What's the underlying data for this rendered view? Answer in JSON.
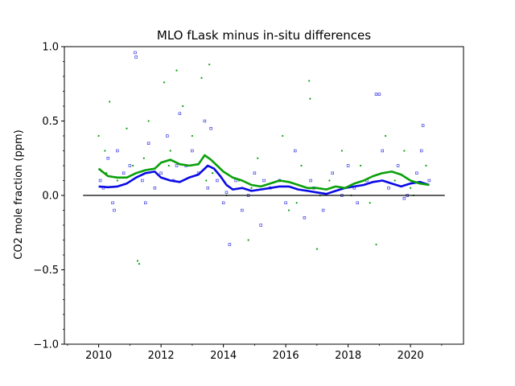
{
  "chart_data": {
    "type": "scatter",
    "title": "MLO fLask minus in-situ differences",
    "xlabel": "",
    "ylabel": "CO2 mole fraction (ppm)",
    "xlim": [
      2008.9,
      2021.7
    ],
    "ylim": [
      -1.0,
      1.0
    ],
    "x_ticks": [
      2010,
      2012,
      2014,
      2016,
      2018,
      2020
    ],
    "x_tick_labels": [
      "2010",
      "2012",
      "2014",
      "2016",
      "2018",
      "2020"
    ],
    "y_ticks": [
      -1.0,
      -0.5,
      0.0,
      0.5,
      1.0
    ],
    "y_tick_labels": [
      "−1.0",
      "−0.5",
      "0.0",
      "0.5",
      "1.0"
    ],
    "grid": false,
    "zero_line": {
      "y": 0.0,
      "x_range": [
        2009.5,
        2021.1
      ],
      "color": "#000000"
    },
    "series": [
      {
        "kind": "points",
        "marker": "open-square",
        "color": "#3a3ae0",
        "x": [
          2010.05,
          2010.15,
          2010.3,
          2010.45,
          2010.6,
          2010.8,
          2011.0,
          2011.17,
          2011.2,
          2011.4,
          2011.6,
          2011.8,
          2012.0,
          2012.2,
          2012.4,
          2012.6,
          2012.8,
          2013.0,
          2013.2,
          2013.4,
          2013.6,
          2013.8,
          2014.0,
          2014.2,
          2014.4,
          2014.6,
          2014.8,
          2015.0,
          2015.2,
          2015.5,
          2015.8,
          2016.0,
          2016.3,
          2016.6,
          2016.9,
          2017.2,
          2017.5,
          2017.8,
          2018.0,
          2018.3,
          2018.6,
          2018.9,
          2019.0,
          2019.1,
          2019.3,
          2019.6,
          2019.9,
          2020.2,
          2020.4,
          2020.6,
          2010.5,
          2011.5,
          2012.5,
          2013.5,
          2014.1,
          2015.3,
          2016.8,
          2018.2,
          2019.8,
          2020.35
        ],
        "y": [
          0.1,
          0.05,
          0.25,
          -0.05,
          0.3,
          0.15,
          0.2,
          0.96,
          0.93,
          0.1,
          0.35,
          0.05,
          0.15,
          0.4,
          0.1,
          0.55,
          0.2,
          0.3,
          0.15,
          0.5,
          0.45,
          0.1,
          -0.05,
          -0.33,
          0.1,
          -0.1,
          0.0,
          0.15,
          -0.2,
          0.05,
          0.1,
          -0.05,
          0.3,
          -0.15,
          0.05,
          -0.1,
          0.15,
          0.0,
          0.2,
          -0.05,
          0.1,
          0.68,
          0.68,
          0.3,
          0.05,
          0.2,
          0.0,
          0.15,
          0.47,
          0.1,
          -0.1,
          -0.05,
          0.2,
          0.05,
          0.02,
          0.1,
          0.1,
          0.05,
          -0.02,
          0.3
        ]
      },
      {
        "kind": "points",
        "marker": "dot",
        "color": "#0aa00a",
        "x": [
          2010.0,
          2010.2,
          2010.35,
          2010.6,
          2010.9,
          2011.1,
          2011.25,
          2011.3,
          2011.6,
          2011.9,
          2012.1,
          2012.3,
          2012.5,
          2012.7,
          2013.0,
          2013.3,
          2013.45,
          2013.55,
          2013.8,
          2014.1,
          2014.5,
          2014.8,
          2015.1,
          2015.5,
          2015.9,
          2016.1,
          2016.5,
          2016.75,
          2016.78,
          2017.0,
          2017.4,
          2017.8,
          2018.1,
          2018.4,
          2018.7,
          2018.9,
          2019.2,
          2019.5,
          2019.8,
          2020.1,
          2020.5,
          2010.25,
          2011.45,
          2012.25,
          2013.65,
          2014.9,
          2016.35,
          2017.1,
          2018.5,
          2020.0
        ],
        "y": [
          0.4,
          0.3,
          0.63,
          0.1,
          0.45,
          0.2,
          -0.44,
          -0.46,
          0.5,
          0.2,
          0.76,
          0.3,
          0.84,
          0.6,
          0.4,
          0.79,
          0.1,
          0.88,
          0.2,
          0.0,
          0.1,
          -0.3,
          0.25,
          0.05,
          0.4,
          -0.1,
          0.2,
          0.77,
          0.65,
          -0.36,
          0.1,
          0.3,
          0.0,
          0.2,
          -0.05,
          -0.33,
          0.4,
          0.1,
          0.3,
          0.0,
          0.2,
          0.15,
          0.25,
          0.2,
          0.15,
          0.05,
          -0.05,
          0.0,
          0.1,
          0.05
        ]
      },
      {
        "kind": "line",
        "name": "",
        "color": "#0a0ae6",
        "x": [
          2010.0,
          2010.3,
          2010.6,
          2010.9,
          2011.2,
          2011.5,
          2011.8,
          2012.0,
          2012.3,
          2012.6,
          2012.9,
          2013.2,
          2013.5,
          2013.7,
          2013.9,
          2014.1,
          2014.3,
          2014.6,
          2014.9,
          2015.2,
          2015.5,
          2015.8,
          2016.1,
          2016.4,
          2016.7,
          2017.0,
          2017.3,
          2017.6,
          2017.9,
          2018.2,
          2018.5,
          2018.8,
          2019.1,
          2019.4,
          2019.7,
          2020.0,
          2020.3,
          2020.6
        ],
        "y": [
          0.06,
          0.055,
          0.06,
          0.08,
          0.12,
          0.15,
          0.16,
          0.12,
          0.1,
          0.09,
          0.12,
          0.14,
          0.2,
          0.18,
          0.13,
          0.07,
          0.04,
          0.05,
          0.03,
          0.04,
          0.05,
          0.06,
          0.06,
          0.04,
          0.03,
          0.02,
          0.01,
          0.03,
          0.05,
          0.06,
          0.07,
          0.09,
          0.1,
          0.08,
          0.06,
          0.08,
          0.09,
          0.07
        ]
      },
      {
        "kind": "line",
        "name": "",
        "color": "#0aa00a",
        "x": [
          2010.0,
          2010.3,
          2010.6,
          2010.9,
          2011.2,
          2011.5,
          2011.8,
          2012.0,
          2012.3,
          2012.6,
          2012.9,
          2013.2,
          2013.4,
          2013.6,
          2013.8,
          2014.0,
          2014.3,
          2014.6,
          2014.9,
          2015.2,
          2015.5,
          2015.8,
          2016.1,
          2016.4,
          2016.7,
          2017.0,
          2017.3,
          2017.6,
          2017.9,
          2018.2,
          2018.5,
          2018.8,
          2019.1,
          2019.4,
          2019.7,
          2020.0,
          2020.3,
          2020.6
        ],
        "y": [
          0.18,
          0.13,
          0.12,
          0.12,
          0.15,
          0.17,
          0.18,
          0.22,
          0.24,
          0.21,
          0.2,
          0.21,
          0.27,
          0.24,
          0.2,
          0.16,
          0.12,
          0.1,
          0.07,
          0.06,
          0.08,
          0.1,
          0.09,
          0.07,
          0.05,
          0.05,
          0.04,
          0.06,
          0.05,
          0.08,
          0.1,
          0.13,
          0.15,
          0.16,
          0.14,
          0.1,
          0.08,
          0.07
        ]
      }
    ]
  }
}
